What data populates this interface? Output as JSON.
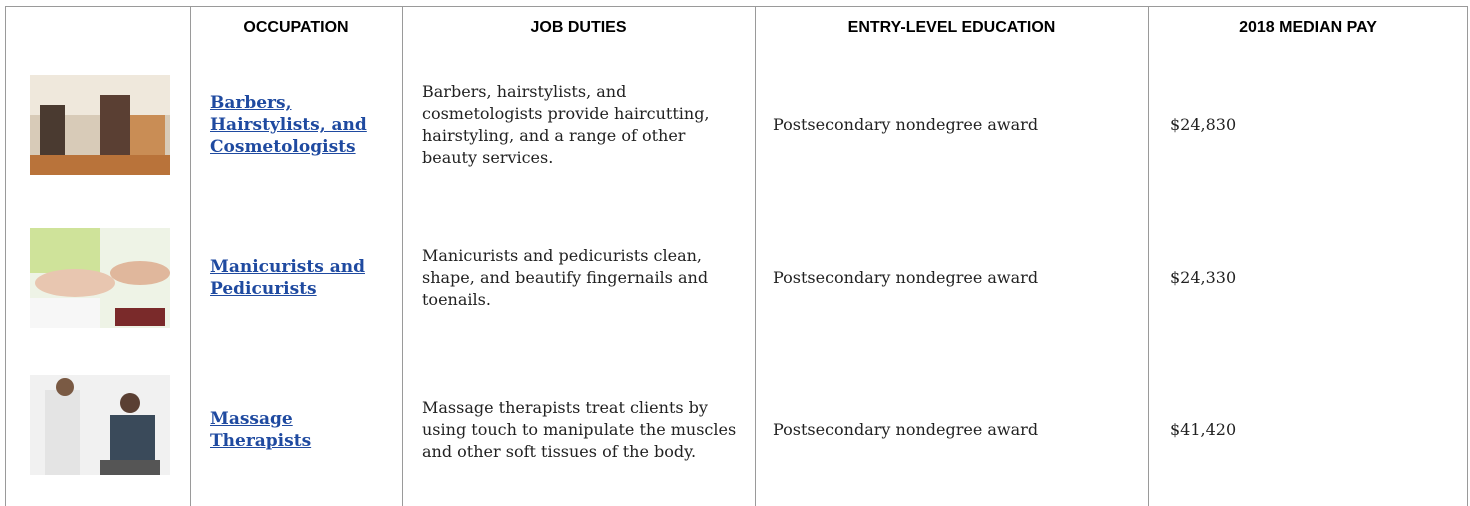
{
  "table": {
    "header": [
      "OCCUPATION",
      "JOB DUTIES",
      "ENTRY-LEVEL EDUCATION",
      "2018 MEDIAN PAY"
    ],
    "rows": [
      {
        "occupation": "Barbers, Hairstylists, and Cosmetologists",
        "duties": "Barbers, hairstylists, and cosmetologists provide haircutting, hairstyling, and a range of other beauty services.",
        "education": "Postsecondary nondegree award",
        "pay": "$24,830"
      },
      {
        "occupation": "Manicurists and Pedicurists",
        "duties": "Manicurists and pedicurists clean, shape, and beautify fingernails and toenails.",
        "education": "Postsecondary nondegree award",
        "pay": "$24,330"
      },
      {
        "occupation": "Massage Therapists",
        "duties": "Massage therapists treat clients by using touch to manipulate the muscles and other soft tissues of the body.",
        "education": "Postsecondary nondegree award",
        "pay": "$41,420"
      }
    ]
  }
}
